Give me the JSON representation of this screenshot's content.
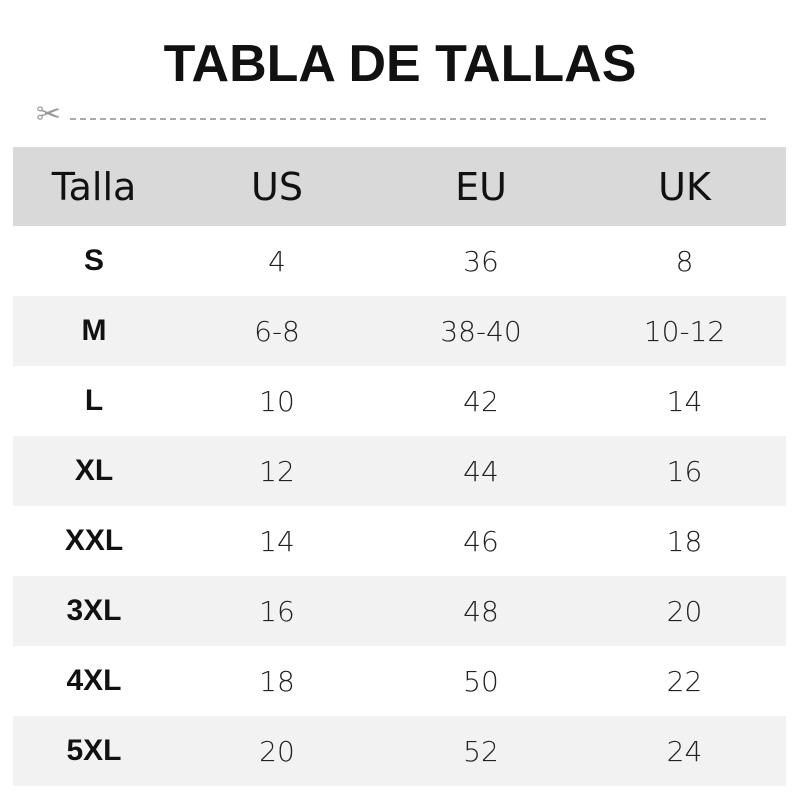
{
  "title": "TABLA DE TALLAS",
  "icons": {
    "cut": "scissors-icon"
  },
  "headers": [
    "Talla",
    "US",
    "EU",
    "UK"
  ],
  "rows": [
    [
      "S",
      "4",
      "36",
      "8"
    ],
    [
      "M",
      "6-8",
      "38-40",
      "10-12"
    ],
    [
      "L",
      "10",
      "42",
      "14"
    ],
    [
      "XL",
      "12",
      "44",
      "16"
    ],
    [
      "XXL",
      "14",
      "46",
      "18"
    ],
    [
      "3XL",
      "16",
      "48",
      "20"
    ],
    [
      "4XL",
      "18",
      "50",
      "22"
    ],
    [
      "5XL",
      "20",
      "52",
      "24"
    ]
  ],
  "colors": {
    "header_bg": "#d9d9d9",
    "alt_row_bg": "#f2f2f2",
    "text": "#111111"
  }
}
